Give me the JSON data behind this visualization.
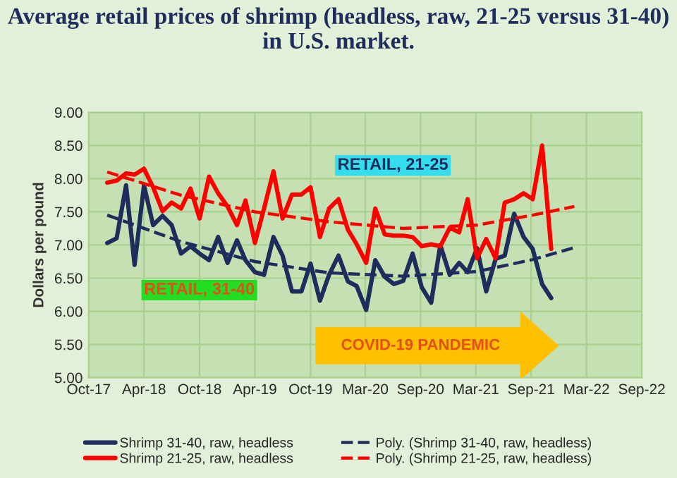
{
  "chart_data": {
    "type": "line",
    "title": "Average retail prices of shrimp (headless, raw, 21-25 versus 31-40) in U.S. market.",
    "ylabel": "Dollars per pound",
    "x": [
      "2017-12",
      "2018-01",
      "2018-02",
      "2018-03",
      "2018-04",
      "2018-05",
      "2018-06",
      "2018-07",
      "2018-08",
      "2018-09",
      "2018-10",
      "2018-11",
      "2018-12",
      "2019-01",
      "2019-02",
      "2019-03",
      "2019-04",
      "2019-05",
      "2019-06",
      "2019-07",
      "2019-08",
      "2019-09",
      "2019-10",
      "2019-11",
      "2019-12",
      "2020-01",
      "2020-02",
      "2020-03",
      "2020-04",
      "2020-05",
      "2020-06",
      "2020-07",
      "2020-08",
      "2020-09",
      "2020-10",
      "2020-11",
      "2020-12",
      "2021-01",
      "2021-02",
      "2021-03",
      "2021-04",
      "2021-05",
      "2021-06",
      "2021-07",
      "2021-08",
      "2021-09",
      "2021-10",
      "2021-11",
      "2021-12"
    ],
    "series": [
      {
        "name": "Shrimp 31-40, raw, headless",
        "color": "#1f2d5c",
        "line_style": "solid",
        "values": [
          7.03,
          7.1,
          7.9,
          6.7,
          7.9,
          7.3,
          7.44,
          7.3,
          6.87,
          6.98,
          6.87,
          6.77,
          7.12,
          6.73,
          7.07,
          6.77,
          6.59,
          6.55,
          7.12,
          6.84,
          6.3,
          6.3,
          6.72,
          6.16,
          6.55,
          6.84,
          6.45,
          6.38,
          6.02,
          6.77,
          6.52,
          6.41,
          6.46,
          6.87,
          6.36,
          6.13,
          7.0,
          6.55,
          6.73,
          6.59,
          6.95,
          6.3,
          6.79,
          6.84,
          7.47,
          7.12,
          6.94,
          6.41,
          6.2
        ]
      },
      {
        "name": "Shrimp 21-25, raw, headless",
        "color": "#ff0000",
        "line_style": "solid",
        "values": [
          7.94,
          7.97,
          8.08,
          8.06,
          8.15,
          7.87,
          7.51,
          7.64,
          7.55,
          7.85,
          7.4,
          8.03,
          7.78,
          7.58,
          7.3,
          7.67,
          7.03,
          7.55,
          8.11,
          7.4,
          7.76,
          7.76,
          7.87,
          7.12,
          7.55,
          7.69,
          7.23,
          7.01,
          6.73,
          7.55,
          7.16,
          7.14,
          7.14,
          7.12,
          6.98,
          7.01,
          6.98,
          7.26,
          7.19,
          7.69,
          6.8,
          7.09,
          6.8,
          7.64,
          7.69,
          7.78,
          7.69,
          8.5,
          6.94
        ]
      },
      {
        "name": "Poly. (Shrimp 31-40, raw, headless)",
        "color": "#1f2d5c",
        "line_style": "dashed",
        "x": [
          "2017-12",
          "2018-08",
          "2019-04",
          "2019-12",
          "2020-08",
          "2021-04",
          "2021-10",
          "2022-02-15"
        ],
        "values": [
          7.45,
          7.05,
          6.75,
          6.58,
          6.53,
          6.6,
          6.78,
          6.96
        ]
      },
      {
        "name": "Poly. (Shrimp 21-25, raw, headless)",
        "color": "#ff0000",
        "line_style": "dashed",
        "x": [
          "2017-12",
          "2018-08",
          "2019-04",
          "2019-12",
          "2020-08",
          "2021-04",
          "2021-10",
          "2022-02-15"
        ],
        "values": [
          8.1,
          7.75,
          7.5,
          7.35,
          7.25,
          7.3,
          7.45,
          7.58
        ]
      }
    ],
    "xlim": [
      "2017-10-01",
      "2022-09-25"
    ],
    "xticks": [
      {
        "value": "2017-10-01",
        "label": "Oct-17"
      },
      {
        "value": "2018-04-01",
        "label": "Apr-18"
      },
      {
        "value": "2018-10-01",
        "label": "Oct-18"
      },
      {
        "value": "2019-04-01",
        "label": "Apr-19"
      },
      {
        "value": "2019-10-01",
        "label": "Oct-19"
      },
      {
        "value": "2020-03-29",
        "label": "Mar-20"
      },
      {
        "value": "2020-09-27",
        "label": "Sep-20"
      },
      {
        "value": "2021-03-28",
        "label": "Mar-21"
      },
      {
        "value": "2021-09-26",
        "label": "Sep-21"
      },
      {
        "value": "2022-03-27",
        "label": "Mar-22"
      },
      {
        "value": "2022-09-25",
        "label": "Sep-22"
      }
    ],
    "ylim": [
      5,
      9
    ],
    "yticks": [
      {
        "value": 5,
        "label": "5.00"
      },
      {
        "value": 5.5,
        "label": "5.50"
      },
      {
        "value": 6,
        "label": "6.00"
      },
      {
        "value": 6.5,
        "label": "6.50"
      },
      {
        "value": 7,
        "label": "7.00"
      },
      {
        "value": 7.5,
        "label": "7.50"
      },
      {
        "value": 8,
        "label": "8.00"
      },
      {
        "value": 8.5,
        "label": "8.50"
      },
      {
        "value": 9,
        "label": "9.00"
      }
    ],
    "annotations": [
      "RETAIL, 21-25",
      "RETAIL, 31-40",
      "COVID-19 PANDEMIC"
    ],
    "grid": true,
    "legend": "bottom"
  }
}
